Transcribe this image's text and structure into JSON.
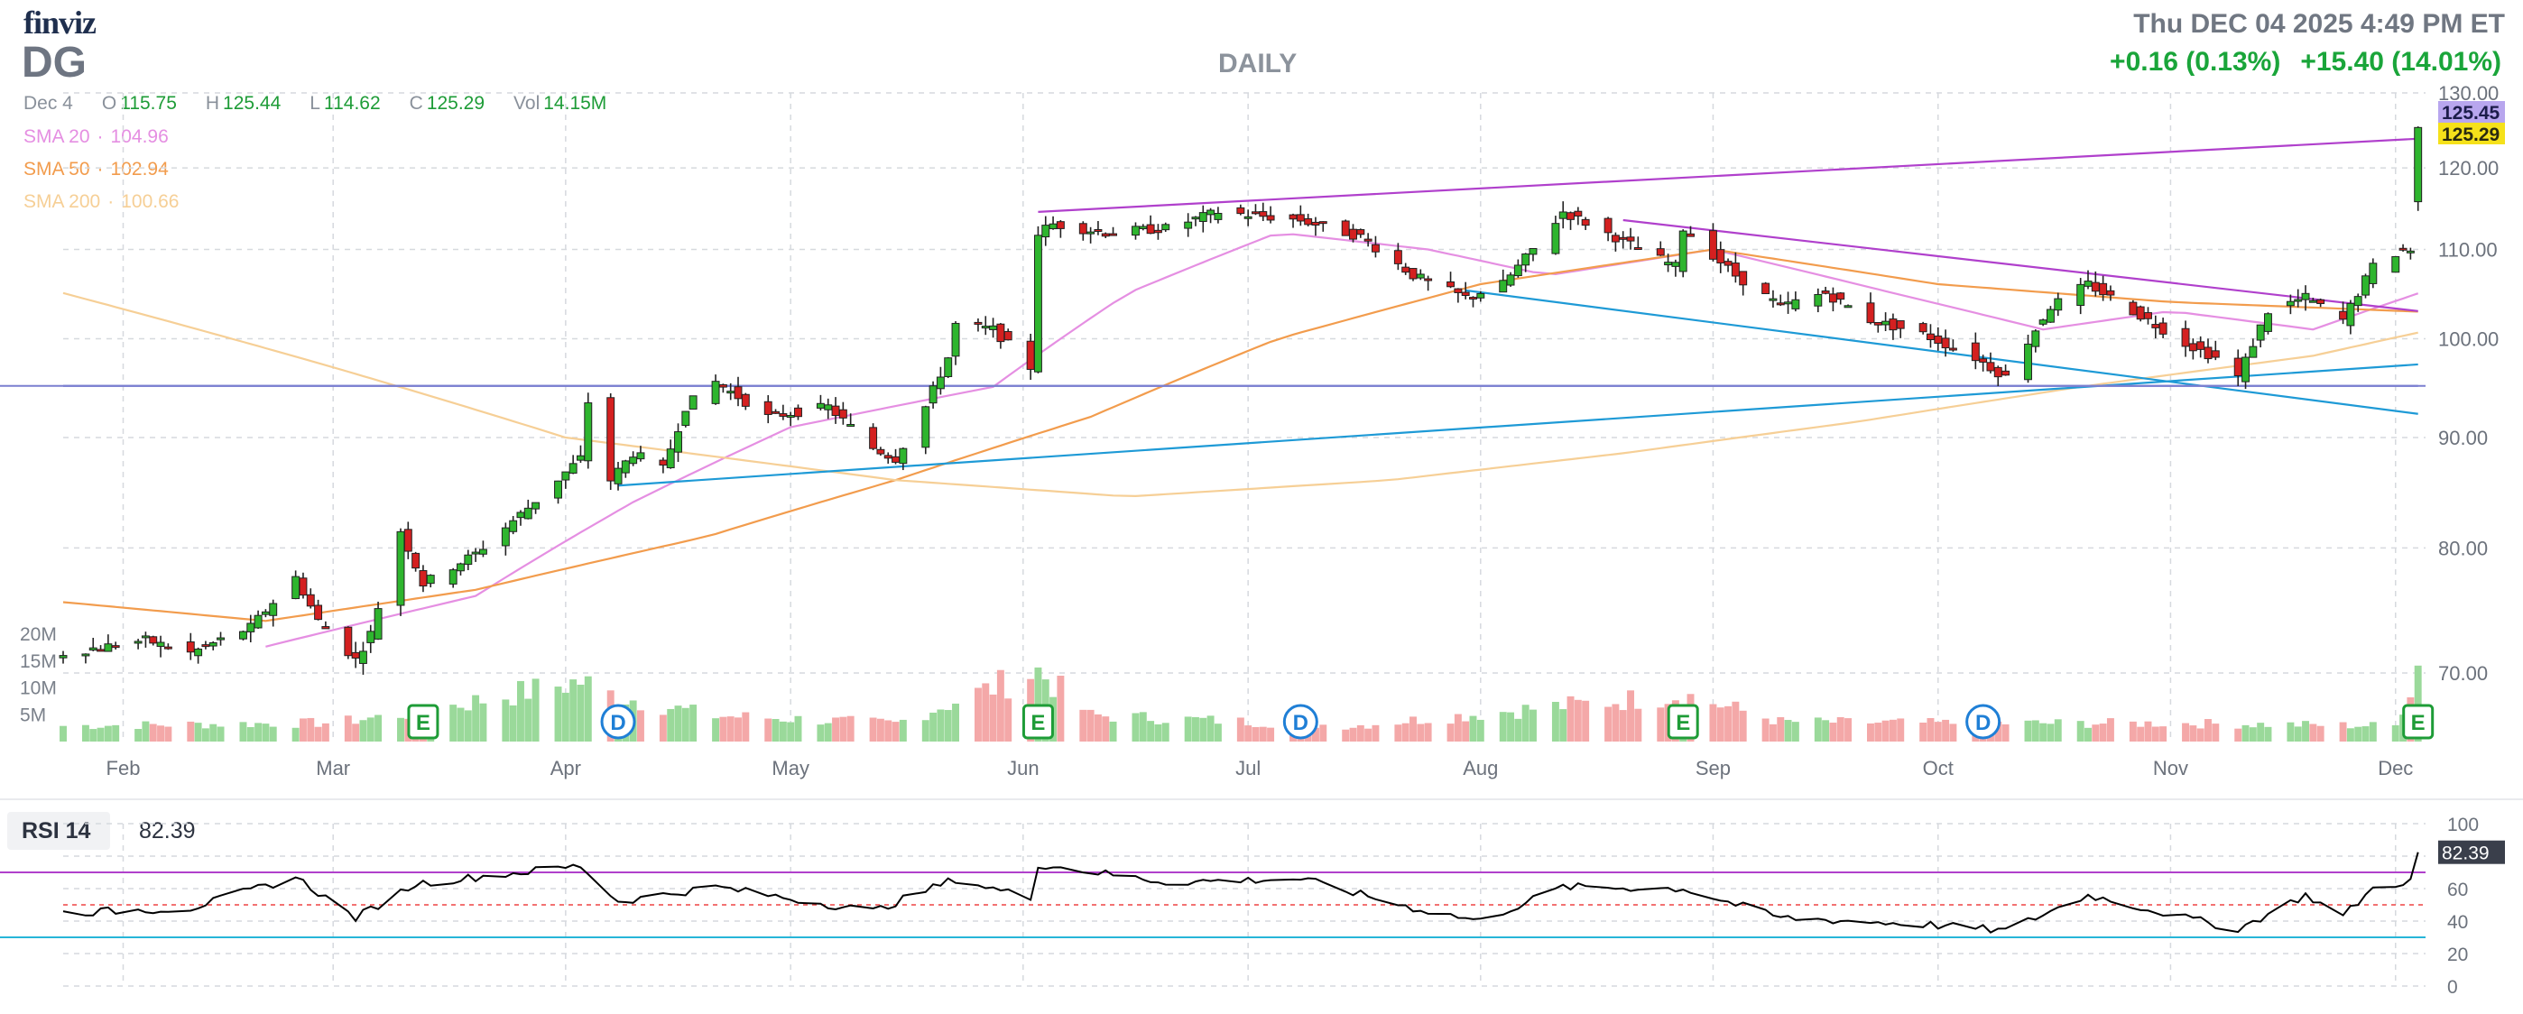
{
  "header": {
    "logo": "finviz",
    "ticker": "DG",
    "datetime": "Thu DEC 04 2025 4:49 PM ET",
    "period": "DAILY",
    "change_day": "+0.16 (0.13%)",
    "change_after": "+15.40 (14.01%)"
  },
  "ohlc": {
    "date": "Dec 4",
    "o_label": "O",
    "o": "115.75",
    "h_label": "H",
    "h": "125.44",
    "l_label": "L",
    "l": "114.62",
    "c_label": "C",
    "c": "125.29",
    "vol_label": "Vol",
    "vol": "14.15M"
  },
  "sma": [
    {
      "label": "SMA 20",
      "value": "104.96"
    },
    {
      "label": "SMA 50",
      "value": "102.94"
    },
    {
      "label": "SMA 200",
      "value": "100.66"
    }
  ],
  "rsi": {
    "label": "RSI 14",
    "value": "82.39"
  },
  "colors": {
    "up": "#2eb52e",
    "down": "#d42020",
    "vol_up": "#9ad99a",
    "vol_down": "#f4a8a8",
    "sma20": "#e58fe2",
    "sma50": "#f29c4d",
    "sma200": "#f6cf96",
    "trend_purple": "#b040cc",
    "trend_blue": "#1e9ad6",
    "horizontal": "#7a7fd0",
    "price_tag_last": "#f5e11a",
    "price_tag_high": "#b8a6ee",
    "rsi_line": "#000000",
    "rsi_70": "#b040cc",
    "rsi_30": "#27b6d8",
    "rsi_50": "#e44"
  },
  "chart_data": [
    {
      "type": "candlestick",
      "title": "DG",
      "x": [
        "2025-01-24",
        "2025-12-04"
      ],
      "xlim": [
        "2025-01-24",
        "2025-12-05"
      ],
      "ylim": [
        65,
        130
      ],
      "yscale": "log",
      "yticks": [
        70,
        80,
        90,
        100,
        110,
        120,
        130
      ],
      "ytick_labels": [
        "70.00",
        "80.00",
        "90.00",
        "100.00",
        "110.00",
        "120.00",
        "130.00"
      ],
      "xtick_labels": [
        "Feb",
        "Mar",
        "Apr",
        "May",
        "Jun",
        "Jul",
        "Aug",
        "Sep",
        "Oct",
        "Nov",
        "Dec"
      ],
      "xtick_dates": [
        "2025-02-01",
        "2025-03-01",
        "2025-04-01",
        "2025-05-01",
        "2025-06-01",
        "2025-07-01",
        "2025-08-01",
        "2025-09-01",
        "2025-10-01",
        "2025-11-01",
        "2025-12-01"
      ],
      "close_anchors": [
        [
          "2025-01-24",
          71.5
        ],
        [
          "2025-02-04",
          72.5
        ],
        [
          "2025-02-10",
          71.5
        ],
        [
          "2025-02-18",
          73.5
        ],
        [
          "2025-02-24",
          77.5
        ],
        [
          "2025-02-27",
          74
        ],
        [
          "2025-03-04",
          71
        ],
        [
          "2025-03-06",
          73
        ],
        [
          "2025-03-10",
          81.5
        ],
        [
          "2025-03-13",
          77
        ],
        [
          "2025-03-20",
          79.5
        ],
        [
          "2025-03-27",
          83.5
        ],
        [
          "2025-04-03",
          88
        ],
        [
          "2025-04-04",
          93.5
        ],
        [
          "2025-04-07",
          86
        ],
        [
          "2025-04-10",
          88.5
        ],
        [
          "2025-04-14",
          87
        ],
        [
          "2025-04-17",
          93
        ],
        [
          "2025-04-21",
          95.5
        ],
        [
          "2025-04-28",
          92
        ],
        [
          "2025-05-06",
          93
        ],
        [
          "2025-05-12",
          89
        ],
        [
          "2025-05-15",
          88
        ],
        [
          "2025-05-19",
          93
        ],
        [
          "2025-05-22",
          98
        ],
        [
          "2025-05-23",
          101.5
        ],
        [
          "2025-05-28",
          101
        ],
        [
          "2025-06-02",
          97
        ],
        [
          "2025-06-03",
          112
        ],
        [
          "2025-06-05",
          113
        ],
        [
          "2025-06-12",
          112
        ],
        [
          "2025-06-20",
          112.5
        ],
        [
          "2025-06-27",
          114.5
        ],
        [
          "2025-07-08",
          113.5
        ],
        [
          "2025-07-16",
          111.5
        ],
        [
          "2025-07-23",
          107
        ],
        [
          "2025-07-30",
          104.5
        ],
        [
          "2025-08-04",
          106
        ],
        [
          "2025-08-08",
          110
        ],
        [
          "2025-08-12",
          114.5
        ],
        [
          "2025-08-20",
          111
        ],
        [
          "2025-08-27",
          108
        ],
        [
          "2025-08-28",
          112.5
        ],
        [
          "2025-09-04",
          107
        ],
        [
          "2025-09-10",
          103.5
        ],
        [
          "2025-09-16",
          105
        ],
        [
          "2025-09-22",
          102
        ],
        [
          "2025-09-29",
          100.5
        ],
        [
          "2025-10-06",
          98
        ],
        [
          "2025-10-10",
          96
        ],
        [
          "2025-10-16",
          103.5
        ],
        [
          "2025-10-21",
          106
        ],
        [
          "2025-10-27",
          103
        ],
        [
          "2025-11-03",
          99.5
        ],
        [
          "2025-11-07",
          98
        ],
        [
          "2025-11-10",
          96
        ],
        [
          "2025-11-14",
          103
        ],
        [
          "2025-11-19",
          104.5
        ],
        [
          "2025-11-24",
          102
        ],
        [
          "2025-11-28",
          108
        ],
        [
          "2025-12-02",
          110
        ],
        [
          "2025-12-03",
          109.9
        ],
        [
          "2025-12-04",
          125.29
        ]
      ],
      "last_bar": {
        "date": "Dec 4",
        "open": 115.75,
        "high": 125.44,
        "low": 114.62,
        "close": 125.29
      },
      "price_tags": [
        {
          "value": "125.45"
        },
        {
          "value": "125.29"
        }
      ],
      "trendlines": [
        {
          "color": "trend_purple",
          "from": [
            "2025-06-03",
            114.5
          ],
          "to": [
            "2025-12-04",
            123.8
          ]
        },
        {
          "color": "trend_purple",
          "from": [
            "2025-08-20",
            113.5
          ],
          "to": [
            "2025-12-04",
            103
          ]
        },
        {
          "color": "trend_blue",
          "from": [
            "2025-04-08",
            85.5
          ],
          "to": [
            "2025-12-04",
            97.3
          ]
        },
        {
          "color": "trend_blue",
          "from": [
            "2025-07-30",
            105.3
          ],
          "to": [
            "2025-12-04",
            92.3
          ]
        },
        {
          "color": "horizontal",
          "from": [
            "2025-01-24",
            95.1
          ],
          "to": [
            "2025-12-04",
            95.1
          ]
        }
      ],
      "series": [
        {
          "name": "SMA 20",
          "anchors": [
            [
              "2025-02-20",
              72
            ],
            [
              "2025-03-20",
              76
            ],
            [
              "2025-04-10",
              84
            ],
            [
              "2025-05-01",
              91
            ],
            [
              "2025-05-28",
              95
            ],
            [
              "2025-06-15",
              105
            ],
            [
              "2025-07-05",
              112
            ],
            [
              "2025-07-25",
              110
            ],
            [
              "2025-08-10",
              107
            ],
            [
              "2025-09-01",
              110
            ],
            [
              "2025-09-25",
              105
            ],
            [
              "2025-10-15",
              101
            ],
            [
              "2025-11-01",
              103
            ],
            [
              "2025-11-20",
              101
            ],
            [
              "2025-12-04",
              104.96
            ]
          ]
        },
        {
          "name": "SMA 50",
          "anchors": [
            [
              "2025-01-24",
              75.5
            ],
            [
              "2025-02-20",
              74
            ],
            [
              "2025-03-20",
              76.5
            ],
            [
              "2025-04-20",
              81
            ],
            [
              "2025-05-15",
              86
            ],
            [
              "2025-06-10",
              92
            ],
            [
              "2025-07-05",
              100
            ],
            [
              "2025-08-01",
              106
            ],
            [
              "2025-09-01",
              110
            ],
            [
              "2025-10-01",
              106
            ],
            [
              "2025-11-01",
              104
            ],
            [
              "2025-12-04",
              102.94
            ]
          ]
        },
        {
          "name": "SMA 200",
          "anchors": [
            [
              "2025-01-24",
              105
            ],
            [
              "2025-03-01",
              97
            ],
            [
              "2025-04-01",
              90
            ],
            [
              "2025-05-15",
              86
            ],
            [
              "2025-06-15",
              84.5
            ],
            [
              "2025-07-20",
              86
            ],
            [
              "2025-08-20",
              88.5
            ],
            [
              "2025-09-20",
              91.5
            ],
            [
              "2025-10-20",
              95
            ],
            [
              "2025-11-20",
              98.2
            ],
            [
              "2025-12-04",
              100.66
            ]
          ]
        }
      ],
      "markers": [
        {
          "type": "E",
          "date": "2025-03-13"
        },
        {
          "type": "D",
          "date": "2025-04-08"
        },
        {
          "type": "E",
          "date": "2025-06-03"
        },
        {
          "type": "D",
          "date": "2025-07-08"
        },
        {
          "type": "E",
          "date": "2025-08-28"
        },
        {
          "type": "D",
          "date": "2025-10-07"
        },
        {
          "type": "E",
          "date": "2025-12-04"
        }
      ]
    },
    {
      "type": "bar",
      "title": "Volume",
      "ylim": [
        0,
        20
      ],
      "yticks": [
        5,
        10,
        15,
        20
      ],
      "ytick_labels": [
        "5M",
        "10M",
        "15M",
        "20M"
      ],
      "anchors": [
        [
          "2025-01-24",
          3
        ],
        [
          "2025-03-01",
          3.6
        ],
        [
          "2025-03-12",
          5.5
        ],
        [
          "2025-04-03",
          11.5
        ],
        [
          "2025-04-07",
          9
        ],
        [
          "2025-04-20",
          5
        ],
        [
          "2025-05-15",
          3.5
        ],
        [
          "2025-06-03",
          13.5
        ],
        [
          "2025-06-10",
          5
        ],
        [
          "2025-07-15",
          3
        ],
        [
          "2025-08-28",
          9
        ],
        [
          "2025-09-10",
          3.8
        ],
        [
          "2025-10-01",
          3.5
        ],
        [
          "2025-11-01",
          3.5
        ],
        [
          "2025-12-01",
          3
        ],
        [
          "2025-12-04",
          14.15
        ]
      ]
    },
    {
      "type": "line",
      "title": "RSI 14",
      "ylim": [
        0,
        100
      ],
      "yticks": [
        0,
        20,
        40,
        60,
        80,
        100
      ],
      "ytick_labels": [
        "0",
        "20",
        "40",
        "60",
        "80",
        "100"
      ],
      "levels": [
        70,
        50,
        30
      ],
      "anchors": [
        [
          "2025-01-24",
          45
        ],
        [
          "2025-02-10",
          48
        ],
        [
          "2025-02-24",
          67
        ],
        [
          "2025-03-04",
          42
        ],
        [
          "2025-03-12",
          63
        ],
        [
          "2025-04-03",
          74
        ],
        [
          "2025-04-08",
          52
        ],
        [
          "2025-04-21",
          61
        ],
        [
          "2025-05-12",
          46
        ],
        [
          "2025-05-23",
          66
        ],
        [
          "2025-06-02",
          54
        ],
        [
          "2025-06-03",
          75
        ],
        [
          "2025-06-20",
          64
        ],
        [
          "2025-07-08",
          66
        ],
        [
          "2025-07-23",
          48
        ],
        [
          "2025-08-01",
          40
        ],
        [
          "2025-08-12",
          61
        ],
        [
          "2025-08-28",
          60
        ],
        [
          "2025-09-10",
          42
        ],
        [
          "2025-09-29",
          38
        ],
        [
          "2025-10-10",
          34
        ],
        [
          "2025-10-21",
          56
        ],
        [
          "2025-11-03",
          42
        ],
        [
          "2025-11-10",
          35
        ],
        [
          "2025-11-19",
          56
        ],
        [
          "2025-11-24",
          43
        ],
        [
          "2025-11-28",
          60
        ],
        [
          "2025-12-03",
          65
        ],
        [
          "2025-12-04",
          82.39
        ]
      ],
      "value": "82.39"
    }
  ]
}
